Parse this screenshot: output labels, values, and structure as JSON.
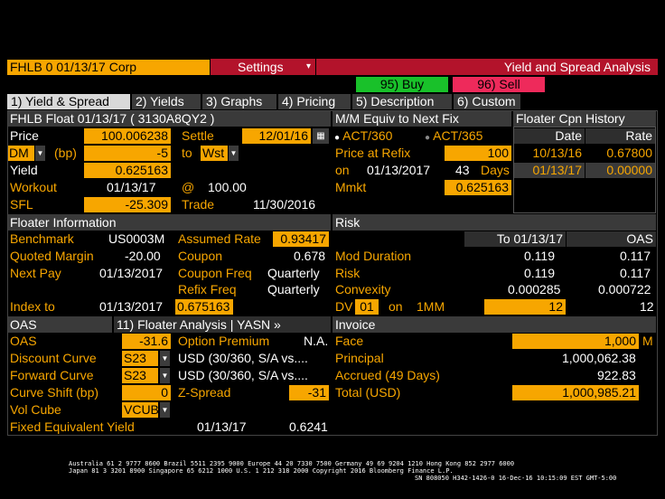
{
  "topbar": {
    "security": "FHLB 0 01/13/17 Corp",
    "settings": "Settings",
    "title": "Yield and Spread Analysis"
  },
  "actions": {
    "buy": "95) Buy",
    "sell": "96) Sell"
  },
  "tabs": [
    "1) Yield & Spread",
    "2) Yields",
    "3) Graphs",
    "4) Pricing",
    "5) Description",
    "6) Custom"
  ],
  "bond": {
    "header": "FHLB Float 01/13/17 ( 3130A8QY2 )",
    "price_label": "Price",
    "price": "100.006238",
    "settle_label": "Settle",
    "settle": "12/01/16",
    "dm_sel": "DM",
    "bp_label": "(bp)",
    "dm_value": "-5",
    "to_label": "to",
    "to_sel": "Wst",
    "yield_label": "Yield",
    "yield": "0.625163",
    "workout_label": "Workout",
    "workout_date": "01/13/17",
    "at": "@",
    "workout_price": "100.00",
    "sfl_label": "SFL",
    "sfl": "-25.309",
    "trade_label": "Trade",
    "trade_date": "11/30/2016"
  },
  "mm": {
    "header": "M/M Equiv to Next Fix",
    "opt1": "ACT/360",
    "opt2": "ACT/365",
    "price_refix_label": "Price at Refix",
    "price_refix": "100",
    "on_label": "on",
    "on_date": "01/13/2017",
    "days_value": "43",
    "days_label": "Days",
    "mmkt_label": "Mmkt",
    "mmkt": "0.625163"
  },
  "cpn_history": {
    "header": "Floater Cpn History",
    "col_date": "Date",
    "col_rate": "Rate",
    "rows": [
      {
        "date": "10/13/16",
        "rate": "0.67800"
      },
      {
        "date": "01/13/17",
        "rate": "0.00000"
      }
    ]
  },
  "floater": {
    "header": "Floater Information",
    "benchmark_label": "Benchmark",
    "benchmark": "US0003M",
    "assumed_rate_label": "Assumed Rate",
    "assumed_rate": "0.93417",
    "quoted_margin_label": "Quoted Margin",
    "quoted_margin": "-20.00",
    "coupon_label": "Coupon",
    "coupon": "0.678",
    "next_pay_label": "Next Pay",
    "next_pay": "01/13/2017",
    "coupon_freq_label": "Coupon Freq",
    "coupon_freq": "Quarterly",
    "refix_freq_label": "Refix Freq",
    "refix_freq": "Quarterly",
    "index_to_label": "Index to",
    "index_to_date": "01/13/2017",
    "index_to_value": "0.675163"
  },
  "risk": {
    "header": "Risk",
    "col1": "To 01/13/17",
    "col2": "OAS",
    "mod_duration_label": "Mod Duration",
    "mod_duration_1": "0.119",
    "mod_duration_2": "0.117",
    "risk_label": "Risk",
    "risk_1": "0.119",
    "risk_2": "0.117",
    "convexity_label": "Convexity",
    "convexity_1": "0.000285",
    "convexity_2": "0.000722",
    "dv_label": "DV",
    "dv_sel": "01",
    "on_label": "on",
    "mm_label": "1MM",
    "dv_1": "12",
    "dv_2": "12"
  },
  "oas": {
    "header": "OAS",
    "analysis_link": "11) Floater Analysis | YASN »",
    "oas_label": "OAS",
    "oas": "-31.6",
    "option_premium_label": "Option Premium",
    "option_premium": "N.A.",
    "discount_curve_label": "Discount Curve",
    "discount_curve": "S23",
    "discount_curve_desc": "USD (30/360, S/A vs....",
    "forward_curve_label": "Forward Curve",
    "forward_curve": "S23",
    "forward_curve_desc": "USD (30/360, S/A vs....",
    "curve_shift_label": "Curve Shift (bp)",
    "curve_shift": "0",
    "zspread_label": "Z-Spread",
    "zspread": "-31",
    "vol_cube_label": "Vol Cube",
    "vol_cube": "VCUB",
    "fixed_equiv_label": "Fixed Equivalent Yield",
    "fixed_equiv_date": "01/13/17",
    "fixed_equiv": "0.6241"
  },
  "invoice": {
    "header": "Invoice",
    "face_label": "Face",
    "face": "1,000",
    "face_unit": "M",
    "principal_label": "Principal",
    "principal": "1,000,062.38",
    "accrued_label": "Accrued (49 Days)",
    "accrued": "922.83",
    "total_label": "Total (USD)",
    "total": "1,000,985.21"
  },
  "footer": {
    "line1": "Australia 61 2 9777 8600 Brazil 5511 2395 9000 Europe 44 20 7330 7500 Germany 49 69 9204 1210 Hong Kong 852 2977 6000",
    "line2": "Japan 81 3 3201 8900        Singapore 65 6212 1000       U.S. 1 212 318 2000             Copyright 2016 Bloomberg Finance L.P.",
    "line3": "SN 808050 H342-1426-0 16-Dec-16 10:15:09 EST  GMT-5:00"
  },
  "colors": {
    "amber": "#f7a600",
    "header": "#3a3a3a",
    "buy": "#19c12a",
    "sell": "#ee2a5b",
    "title_bar": "#b3132b"
  }
}
